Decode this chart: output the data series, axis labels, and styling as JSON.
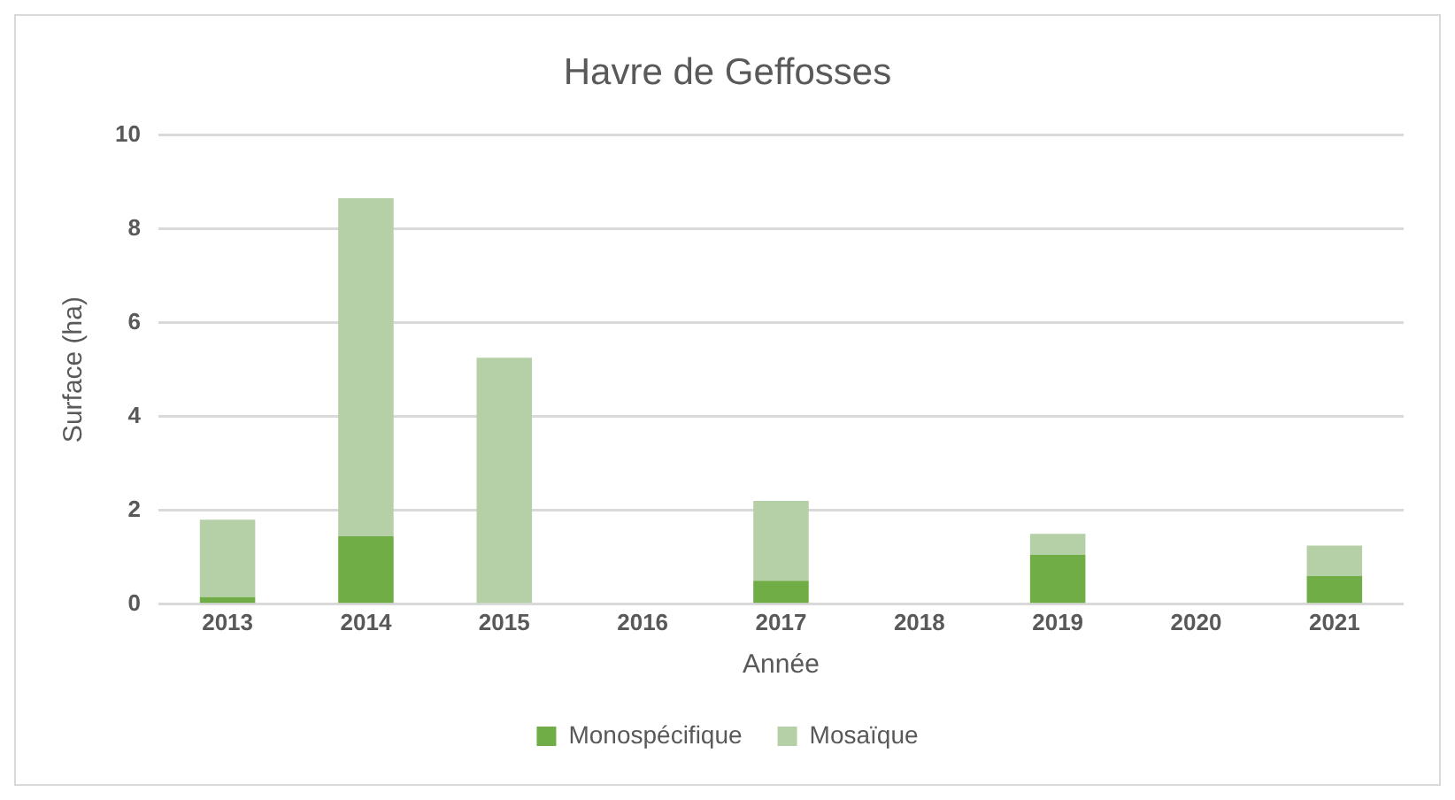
{
  "chart_data": {
    "type": "bar",
    "title": "Havre de Geffosses",
    "xlabel": "Année",
    "ylabel": "Surface (ha)",
    "categories": [
      "2013",
      "2014",
      "2015",
      "2016",
      "2017",
      "2018",
      "2019",
      "2020",
      "2021"
    ],
    "series": [
      {
        "name": "Monospécifique",
        "color": "#70ad47",
        "values": [
          0.15,
          1.45,
          0,
          0,
          0.5,
          0,
          1.05,
          0,
          0.6
        ]
      },
      {
        "name": "Mosaïque",
        "color": "#b5d0a6",
        "values": [
          1.65,
          7.2,
          5.25,
          0,
          1.7,
          0,
          0.45,
          0,
          0.65
        ]
      }
    ],
    "stacked": true,
    "ylim": [
      0,
      10
    ],
    "yticks": [
      0,
      2,
      4,
      6,
      8,
      10
    ],
    "grid": "y",
    "legend": "bottom"
  }
}
